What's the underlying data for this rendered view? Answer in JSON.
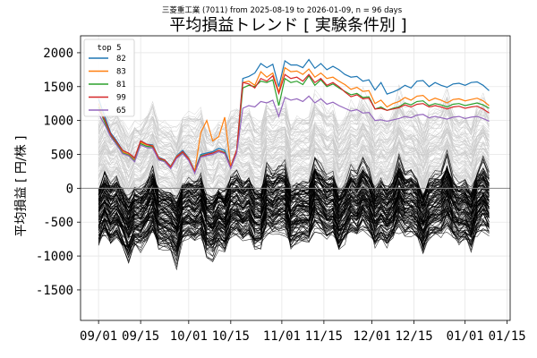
{
  "chart_data": {
    "type": "line",
    "subtitle": "三菱重工業 (7011) from 2025-08-19 to 2026-01-09, n = 96 days",
    "title": "平均損益トレンド [ 実験条件別 ]",
    "ylabel": "平均損益 [ 円/株 ]",
    "xlabel": "",
    "ylim": [
      -1950,
      2250
    ],
    "yticks": [
      -1500,
      -1000,
      -500,
      0,
      500,
      1000,
      1500,
      2000
    ],
    "xticks": [
      "09/01",
      "09/15",
      "10/01",
      "10/15",
      "11/01",
      "11/15",
      "12/01",
      "12/15",
      "01/01",
      "01/15"
    ],
    "xtick_days": [
      13,
      27,
      43,
      57,
      74,
      88,
      104,
      118,
      135,
      149
    ],
    "x_range_days": [
      7,
      150
    ],
    "grid": true,
    "legend": {
      "title": "top 5",
      "position": "top-left"
    },
    "background_lines": {
      "positive_count": 90,
      "negative_count": 110,
      "positive_color": "#c8c8c8",
      "negative_color": "#000000"
    },
    "series": [
      {
        "name": "82",
        "color": "#1f77b4",
        "days": [
          13,
          15,
          17,
          19,
          21,
          23,
          25,
          27,
          29,
          31,
          33,
          35,
          37,
          39,
          41,
          43,
          45,
          47,
          49,
          51,
          53,
          55,
          57,
          59,
          61,
          63,
          65,
          67,
          69,
          71,
          73,
          75,
          77,
          79,
          81,
          83,
          85,
          87,
          89,
          91,
          93,
          95,
          97,
          99,
          101,
          103,
          105,
          107,
          109,
          111,
          113,
          115,
          117,
          119,
          121,
          123,
          125,
          127,
          129,
          131,
          133,
          135,
          137,
          139,
          141,
          143
        ],
        "values": [
          1320,
          1060,
          820,
          700,
          560,
          520,
          430,
          700,
          650,
          640,
          460,
          420,
          330,
          480,
          560,
          450,
          260,
          500,
          520,
          540,
          590,
          560,
          330,
          570,
          1620,
          1650,
          1700,
          1840,
          1780,
          1830,
          1500,
          1880,
          1820,
          1820,
          1780,
          1900,
          1770,
          1840,
          1750,
          1800,
          1750,
          1680,
          1640,
          1650,
          1580,
          1600,
          1450,
          1560,
          1390,
          1420,
          1460,
          1520,
          1480,
          1580,
          1590,
          1500,
          1560,
          1520,
          1490,
          1540,
          1550,
          1520,
          1560,
          1570,
          1520,
          1440
        ]
      },
      {
        "name": "83",
        "color": "#ff7f0e",
        "days": [
          13,
          15,
          17,
          19,
          21,
          23,
          25,
          27,
          29,
          31,
          33,
          35,
          37,
          39,
          41,
          43,
          45,
          47,
          49,
          51,
          53,
          55,
          57,
          59,
          61,
          63,
          65,
          67,
          69,
          71,
          73,
          75,
          77,
          79,
          81,
          83,
          85,
          87,
          89,
          91,
          93,
          95,
          97,
          99,
          101,
          103,
          105,
          107,
          109,
          111,
          113,
          115,
          117,
          119,
          121,
          123,
          125,
          127,
          129,
          131,
          133,
          135,
          137,
          139,
          141,
          143
        ],
        "values": [
          1250,
          1000,
          800,
          680,
          540,
          500,
          420,
          680,
          640,
          630,
          450,
          410,
          320,
          470,
          540,
          440,
          250,
          820,
          1000,
          700,
          760,
          1050,
          320,
          570,
          1560,
          1580,
          1520,
          1720,
          1640,
          1700,
          1420,
          1780,
          1720,
          1730,
          1680,
          1760,
          1640,
          1700,
          1620,
          1640,
          1580,
          1530,
          1460,
          1490,
          1430,
          1440,
          1250,
          1300,
          1200,
          1250,
          1280,
          1340,
          1300,
          1360,
          1370,
          1290,
          1330,
          1300,
          1260,
          1310,
          1320,
          1290,
          1310,
          1330,
          1290,
          1220
        ]
      },
      {
        "name": "81",
        "color": "#2ca02c",
        "days": [
          13,
          15,
          17,
          19,
          21,
          23,
          25,
          27,
          29,
          31,
          33,
          35,
          37,
          39,
          41,
          43,
          45,
          47,
          49,
          51,
          53,
          55,
          57,
          59,
          61,
          63,
          65,
          67,
          69,
          71,
          73,
          75,
          77,
          79,
          81,
          83,
          85,
          87,
          89,
          91,
          93,
          95,
          97,
          99,
          101,
          103,
          105,
          107,
          109,
          111,
          113,
          115,
          117,
          119,
          121,
          123,
          125,
          127,
          129,
          131,
          133,
          135,
          137,
          139,
          141,
          143
        ],
        "values": [
          1200,
          980,
          780,
          660,
          520,
          490,
          400,
          660,
          620,
          610,
          430,
          400,
          300,
          450,
          520,
          420,
          230,
          480,
          500,
          520,
          560,
          530,
          300,
          540,
          1480,
          1520,
          1500,
          1580,
          1560,
          1600,
          1220,
          1620,
          1560,
          1580,
          1530,
          1660,
          1520,
          1600,
          1500,
          1540,
          1480,
          1430,
          1380,
          1400,
          1340,
          1350,
          1170,
          1200,
          1150,
          1180,
          1200,
          1260,
          1230,
          1280,
          1290,
          1220,
          1250,
          1230,
          1200,
          1240,
          1250,
          1220,
          1240,
          1260,
          1230,
          1180
        ]
      },
      {
        "name": "99",
        "color": "#d62728",
        "days": [
          13,
          15,
          17,
          19,
          21,
          23,
          25,
          27,
          29,
          31,
          33,
          35,
          37,
          39,
          41,
          43,
          45,
          47,
          49,
          51,
          53,
          55,
          57,
          59,
          61,
          63,
          65,
          67,
          69,
          71,
          73,
          75,
          77,
          79,
          81,
          83,
          85,
          87,
          89,
          91,
          93,
          95,
          97,
          99,
          101,
          103,
          105,
          107,
          109,
          111,
          113,
          115,
          117,
          119,
          121,
          123,
          125,
          127,
          129,
          131,
          133,
          135,
          137,
          139,
          141,
          143
        ],
        "values": [
          1150,
          1020,
          800,
          680,
          560,
          520,
          450,
          700,
          650,
          620,
          440,
          420,
          310,
          460,
          540,
          430,
          240,
          470,
          500,
          520,
          560,
          520,
          310,
          560,
          1560,
          1540,
          1480,
          1620,
          1580,
          1660,
          1400,
          1680,
          1620,
          1640,
          1580,
          1680,
          1560,
          1620,
          1520,
          1560,
          1500,
          1420,
          1350,
          1380,
          1320,
          1330,
          1170,
          1180,
          1150,
          1170,
          1190,
          1230,
          1200,
          1240,
          1250,
          1200,
          1220,
          1200,
          1170,
          1200,
          1210,
          1180,
          1200,
          1210,
          1170,
          1110
        ]
      },
      {
        "name": "65",
        "color": "#9467bd",
        "days": [
          13,
          15,
          17,
          19,
          21,
          23,
          25,
          27,
          29,
          31,
          33,
          35,
          37,
          39,
          41,
          43,
          45,
          47,
          49,
          51,
          53,
          55,
          57,
          59,
          61,
          63,
          65,
          67,
          69,
          71,
          73,
          75,
          77,
          79,
          81,
          83,
          85,
          87,
          89,
          91,
          93,
          95,
          97,
          99,
          101,
          103,
          105,
          107,
          109,
          111,
          113,
          115,
          117,
          119,
          121,
          123,
          125,
          127,
          129,
          131,
          133,
          135,
          137,
          139,
          141,
          143
        ],
        "values": [
          1100,
          940,
          760,
          640,
          510,
          480,
          390,
          640,
          600,
          590,
          420,
          390,
          290,
          440,
          510,
          410,
          220,
          460,
          480,
          500,
          540,
          510,
          290,
          520,
          1180,
          1220,
          1200,
          1280,
          1260,
          1300,
          1060,
          1340,
          1300,
          1320,
          1280,
          1360,
          1260,
          1320,
          1240,
          1270,
          1220,
          1180,
          1140,
          1160,
          1110,
          1120,
          1000,
          1010,
          990,
          1010,
          1030,
          1060,
          1040,
          1080,
          1090,
          1040,
          1060,
          1040,
          1020,
          1050,
          1060,
          1030,
          1050,
          1060,
          1030,
          990
        ]
      }
    ]
  }
}
